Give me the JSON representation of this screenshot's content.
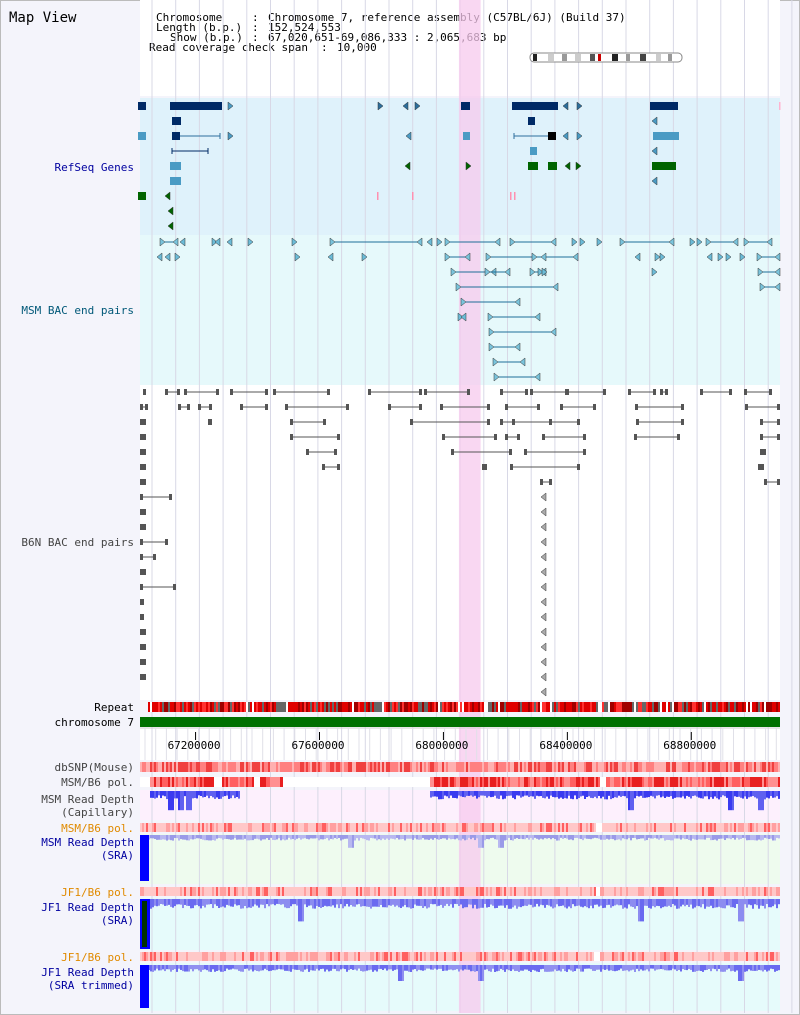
{
  "title": "Map View",
  "header": {
    "chromosome_label": "Chromosome",
    "chromosome_value": "Chromosome 7, reference assembly (C57BL/6J) (Build 37)",
    "length_label": "Length (b.p.)",
    "length_value": "152,524,553",
    "show_label": "Show (b.p.)",
    "show_value": "67,020,651-69,086,333 : 2,065,683 bp",
    "coverage_label": "Read coverage check span",
    "coverage_value": "10,000"
  },
  "tracks": {
    "refseq": "RefSeq Genes",
    "msm_bac": "MSM BAC end pairs",
    "b6n_bac": "B6N BAC end pairs",
    "repeat": "Repeat",
    "chromosome": "chromosome 7",
    "dbsnp": "dbSNP(Mouse)",
    "msm_b6_pol_1": "MSM/B6 pol.",
    "msm_read_depth_cap_1": "MSM Read Depth",
    "msm_read_depth_cap_2": "(Capillary)",
    "msm_b6_pol_2": "MSM/B6 pol.",
    "msm_read_depth_sra_1": "MSM Read Depth",
    "msm_read_depth_sra_2": "(SRA)",
    "jf1_b6_pol_1": "JF1/B6 pol.",
    "jf1_read_depth_sra_1": "JF1 Read Depth",
    "jf1_read_depth_sra_2": "(SRA)",
    "jf1_b6_pol_2": "JF1/B6 pol.",
    "jf1_read_depth_trim_1": "JF1 Read Depth",
    "jf1_read_depth_trim_2": "(SRA trimmed)"
  },
  "axis": {
    "ticks": [
      67200000,
      67600000,
      68000000,
      68400000,
      68800000
    ],
    "view_start": 67020651,
    "view_end": 69086333,
    "highlight_start": 68050000,
    "highlight_end": 68120000
  },
  "colors": {
    "refseq_bg": "#dff2fb",
    "msm_bg": "#e6f9fb",
    "highlight": "#f7c9ee",
    "chromosome_bar": "#007000",
    "depth_blue": "#3232ff",
    "depth_light": "#8080f0",
    "snp_red": "#ee2020"
  }
}
